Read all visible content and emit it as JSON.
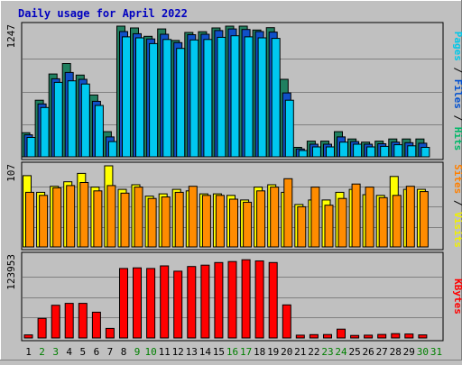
{
  "chart_data": {
    "type": "bar",
    "title": "Daily usage for April 2022",
    "days": [
      {
        "label": "1",
        "weekend": false
      },
      {
        "label": "2",
        "weekend": true
      },
      {
        "label": "3",
        "weekend": true
      },
      {
        "label": "4",
        "weekend": false
      },
      {
        "label": "5",
        "weekend": false
      },
      {
        "label": "6",
        "weekend": false
      },
      {
        "label": "7",
        "weekend": false
      },
      {
        "label": "8",
        "weekend": false
      },
      {
        "label": "9",
        "weekend": true
      },
      {
        "label": "10",
        "weekend": true
      },
      {
        "label": "11",
        "weekend": false
      },
      {
        "label": "12",
        "weekend": false
      },
      {
        "label": "13",
        "weekend": false
      },
      {
        "label": "14",
        "weekend": false
      },
      {
        "label": "15",
        "weekend": false
      },
      {
        "label": "16",
        "weekend": true
      },
      {
        "label": "17",
        "weekend": true
      },
      {
        "label": "18",
        "weekend": false
      },
      {
        "label": "19",
        "weekend": false
      },
      {
        "label": "20",
        "weekend": false
      },
      {
        "label": "21",
        "weekend": false
      },
      {
        "label": "22",
        "weekend": false
      },
      {
        "label": "23",
        "weekend": true
      },
      {
        "label": "24",
        "weekend": true
      },
      {
        "label": "25",
        "weekend": false
      },
      {
        "label": "26",
        "weekend": false
      },
      {
        "label": "27",
        "weekend": false
      },
      {
        "label": "28",
        "weekend": false
      },
      {
        "label": "29",
        "weekend": false
      },
      {
        "label": "30",
        "weekend": true
      },
      {
        "label": "31",
        "weekend": true
      }
    ],
    "panels": [
      {
        "id": "top",
        "axis_max_label": "1247",
        "ymax": 1247,
        "legend": [
          {
            "text": "Pages",
            "color": "#00c8e8"
          },
          {
            "text": " / ",
            "color": "#000000"
          },
          {
            "text": "Files",
            "color": "#0050d0"
          },
          {
            "text": " / ",
            "color": "#000000"
          },
          {
            "text": "Hits",
            "color": "#00b868"
          }
        ],
        "series": [
          {
            "name": "Hits",
            "color": "#208060",
            "values": [
              230,
              540,
              790,
              890,
              780,
              590,
              240,
              1247,
              1230,
              1150,
              1220,
              1110,
              1187,
              1194,
              1230,
              1247,
              1247,
              1210,
              1232,
              740,
              90,
              150,
              150,
              240,
              170,
              140,
              150,
              170,
              170,
              170,
              0
            ]
          },
          {
            "name": "Files",
            "color": "#1050c8",
            "values": [
              210,
              505,
              745,
              805,
              740,
              530,
              190,
              1195,
              1175,
              1125,
              1170,
              1090,
              1165,
              1170,
              1205,
              1220,
              1215,
              1195,
              1190,
              610,
              75,
              120,
              120,
              190,
              145,
              120,
              125,
              140,
              135,
              130,
              0
            ]
          },
          {
            "name": "Pages",
            "color": "#00c8f0",
            "values": [
              185,
              470,
              710,
              725,
              695,
              490,
              145,
              1145,
              1135,
              1080,
              1120,
              1035,
              1115,
              1120,
              1140,
              1155,
              1145,
              1135,
              1130,
              540,
              60,
              95,
              95,
              140,
              120,
              95,
              100,
              115,
              105,
              90,
              0
            ]
          }
        ]
      },
      {
        "id": "mid",
        "axis_max_label": "107",
        "ymax": 107,
        "legend": [
          {
            "text": "Sites",
            "color": "#ff8000"
          },
          {
            "text": " / ",
            "color": "#000000"
          },
          {
            "text": "Visits",
            "color": "#f0f000"
          }
        ],
        "series": [
          {
            "name": "Visits",
            "color": "#ffff00",
            "values": [
              94,
              72,
              80,
              86,
              97,
              79,
              107,
              76,
              82,
              67,
              70,
              76,
              74,
              70,
              70,
              68,
              62,
              79,
              82,
              72,
              56,
              62,
              62,
              72,
              76,
              69,
              68,
              93,
              76,
              76,
              0
            ]
          },
          {
            "name": "Sites",
            "color": "#ff8c00",
            "values": [
              72,
              68,
              78,
              81,
              85,
              74,
              81,
              71,
              79,
              64,
              66,
              72,
              80,
              68,
              68,
              63,
              59,
              74,
              79,
              90,
              53,
              79,
              55,
              64,
              83,
              79,
              65,
              68,
              80,
              73,
              0
            ]
          }
        ]
      },
      {
        "id": "bot",
        "axis_max_label": "123953",
        "ymax": 123953,
        "legend": [
          {
            "text": "KBytes",
            "color": "#ff0000"
          }
        ],
        "series": [
          {
            "name": "KBytes",
            "color": "#ff0000",
            "values": [
              4600,
              29600,
              49500,
              52300,
              52300,
              38900,
              14400,
              105000,
              106000,
              105000,
              109000,
              101000,
              108000,
              110000,
              114000,
              115500,
              118300,
              116500,
              114000,
              50000,
              4200,
              5100,
              5200,
              13400,
              3800,
              4200,
              5300,
              6600,
              6000,
              4600,
              0
            ]
          }
        ]
      }
    ]
  }
}
